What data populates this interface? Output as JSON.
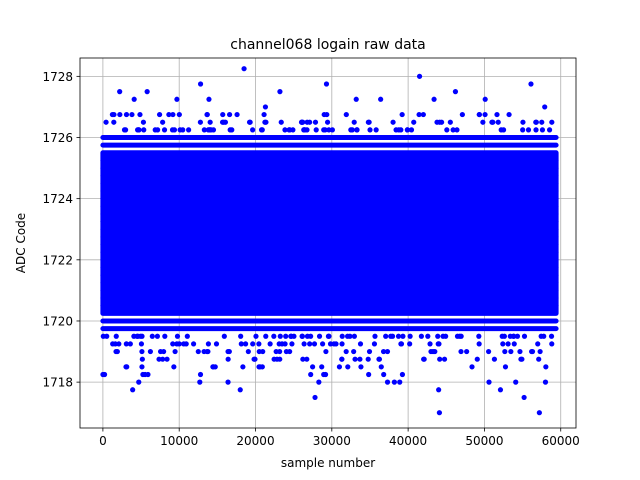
{
  "chart_data": {
    "type": "scatter",
    "title": "channel068 logain raw data",
    "xlabel": "sample number",
    "ylabel": "ADC Code",
    "xlim": [
      -3000,
      62000
    ],
    "ylim": [
      1716.5,
      1728.6
    ],
    "x_ticks": [
      0,
      10000,
      20000,
      30000,
      40000,
      50000,
      60000
    ],
    "x_tick_labels": [
      "0",
      "10000",
      "20000",
      "30000",
      "40000",
      "50000",
      "60000"
    ],
    "y_ticks": [
      1718,
      1720,
      1722,
      1724,
      1726,
      1728
    ],
    "y_tick_labels": [
      "1718",
      "1720",
      "1722",
      "1724",
      "1726",
      "1728"
    ],
    "grid": true,
    "marker_color": "#0000ff",
    "sample_count": 59392,
    "series": [
      {
        "dense_band": {
          "x_range": [
            0,
            59391
          ],
          "y_range": [
            1719.75,
            1726.0
          ],
          "level_step": 0.25
        },
        "outliers": [
          {
            "x": 18500,
            "y": 1728.25
          },
          {
            "x": 41500,
            "y": 1728.0
          },
          {
            "x": 29300,
            "y": 1727.75
          },
          {
            "x": 12800,
            "y": 1727.75
          },
          {
            "x": 56100,
            "y": 1727.75
          },
          {
            "x": 2200,
            "y": 1727.5
          },
          {
            "x": 5800,
            "y": 1727.5
          },
          {
            "x": 23200,
            "y": 1727.5
          },
          {
            "x": 46200,
            "y": 1727.5
          },
          {
            "x": 9700,
            "y": 1727.25
          },
          {
            "x": 13900,
            "y": 1727.25
          },
          {
            "x": 33200,
            "y": 1727.25
          },
          {
            "x": 36400,
            "y": 1727.25
          },
          {
            "x": 43400,
            "y": 1727.25
          },
          {
            "x": 50100,
            "y": 1727.25
          },
          {
            "x": 57900,
            "y": 1727.0
          },
          {
            "x": 21300,
            "y": 1727.0
          },
          {
            "x": 4100,
            "y": 1727.25
          },
          {
            "x": 27800,
            "y": 1717.5
          },
          {
            "x": 55200,
            "y": 1717.5
          },
          {
            "x": 44100,
            "y": 1717.0
          },
          {
            "x": 57200,
            "y": 1717.0
          },
          {
            "x": 3900,
            "y": 1717.75
          },
          {
            "x": 18000,
            "y": 1717.75
          },
          {
            "x": 44000,
            "y": 1717.75
          },
          {
            "x": 52100,
            "y": 1717.75
          },
          {
            "x": 4700,
            "y": 1718.0
          },
          {
            "x": 12700,
            "y": 1718.0
          },
          {
            "x": 16400,
            "y": 1718.0
          },
          {
            "x": 28300,
            "y": 1718.0
          },
          {
            "x": 37300,
            "y": 1718.0
          },
          {
            "x": 38200,
            "y": 1718.0
          },
          {
            "x": 38900,
            "y": 1718.0
          },
          {
            "x": 50600,
            "y": 1718.0
          },
          {
            "x": 54100,
            "y": 1718.0
          },
          {
            "x": 58000,
            "y": 1718.0
          }
        ]
      }
    ]
  }
}
